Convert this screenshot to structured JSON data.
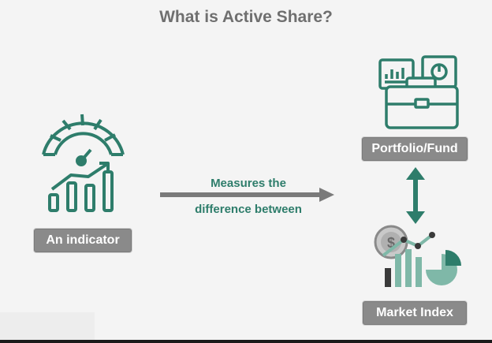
{
  "title": "What is Active Share?",
  "labels": {
    "indicator": "An indicator",
    "portfolio": "Portfolio/Fund",
    "market": "Market Index"
  },
  "arrow_text": {
    "line1": "Measures the",
    "line2": "difference between"
  },
  "colors": {
    "accent": "#2e7d6b",
    "accent_light": "#7fb8a8",
    "label_bg": "#8a8a8a",
    "arrow": "#7a7a7a",
    "dark": "#3a3a3a"
  },
  "icons": {
    "indicator": "gauge-chart-icon",
    "portfolio": "briefcase-reports-icon",
    "market": "market-chart-icon"
  }
}
